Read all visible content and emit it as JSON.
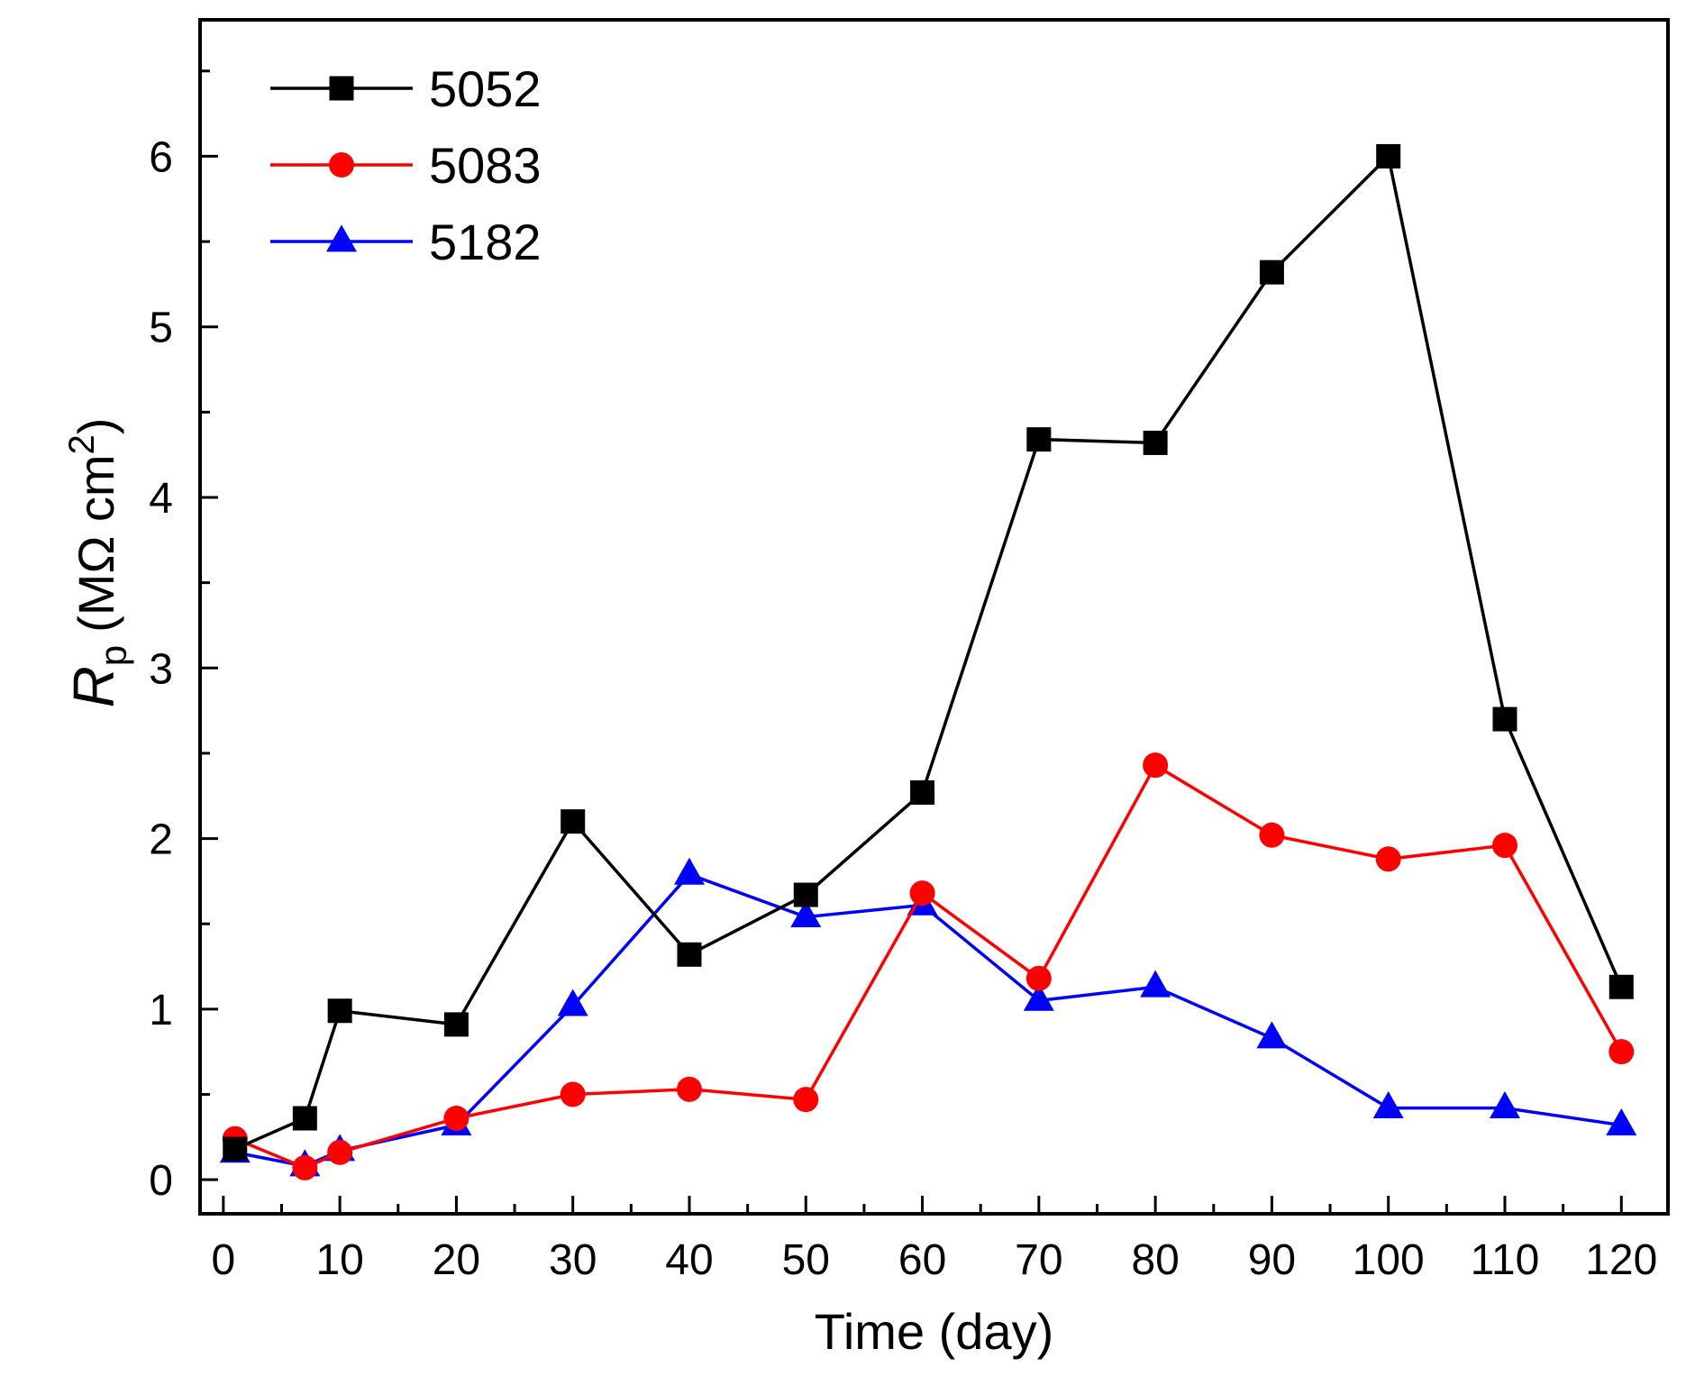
{
  "chart_data": {
    "type": "line",
    "title": "",
    "xlabel": "Time (day)",
    "ylabel": {
      "symbol": "R",
      "subscript": "p",
      "unit": "(MΩ cm",
      "unit_sup": "2",
      "unit_close": ")"
    },
    "xlim": [
      -2,
      124
    ],
    "ylim": [
      -0.2,
      6.8
    ],
    "xticks": [
      0,
      10,
      20,
      30,
      40,
      50,
      60,
      70,
      80,
      90,
      100,
      110,
      120
    ],
    "yticks": [
      0,
      1,
      2,
      3,
      4,
      5,
      6
    ],
    "grid": false,
    "legend": "top-left",
    "x": [
      1,
      7,
      10,
      20,
      30,
      40,
      50,
      60,
      70,
      80,
      90,
      100,
      110,
      120
    ],
    "series": [
      {
        "name": "5052",
        "color": "#000000",
        "marker": "square",
        "values": [
          0.18,
          0.36,
          0.99,
          0.91,
          2.1,
          1.32,
          1.67,
          2.27,
          4.34,
          4.32,
          5.32,
          6.0,
          2.7,
          1.13
        ]
      },
      {
        "name": "5083",
        "color": "#ff0000",
        "marker": "circle",
        "values": [
          0.24,
          0.07,
          0.16,
          0.36,
          0.5,
          0.53,
          0.47,
          1.68,
          1.18,
          2.43,
          2.02,
          1.88,
          1.96,
          0.75
        ]
      },
      {
        "name": "5182",
        "color": "#0000ff",
        "marker": "triangle",
        "values": [
          0.16,
          0.08,
          0.17,
          0.32,
          1.02,
          1.79,
          1.54,
          1.61,
          1.05,
          1.13,
          0.83,
          0.42,
          0.42,
          0.32
        ]
      }
    ]
  }
}
